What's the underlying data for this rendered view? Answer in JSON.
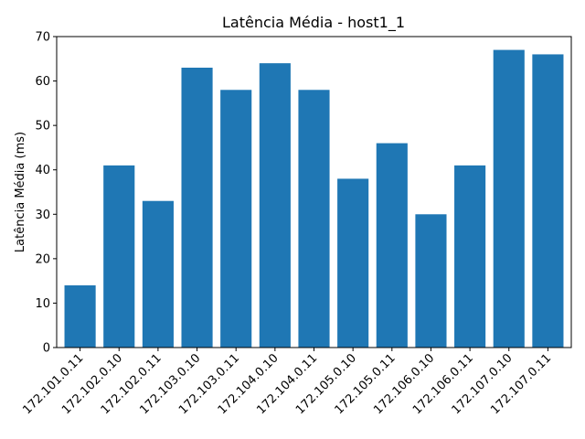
{
  "chart_data": {
    "type": "bar",
    "title": "Latência Média - host1_1",
    "xlabel": "",
    "ylabel": "Latência Média (ms)",
    "ylim": [
      0,
      70
    ],
    "yticks": [
      0,
      10,
      20,
      30,
      40,
      50,
      60,
      70
    ],
    "grid": false,
    "bar_color": "#1f77b4",
    "categories": [
      "172.101.0.11",
      "172.102.0.10",
      "172.102.0.11",
      "172.103.0.10",
      "172.103.0.11",
      "172.104.0.10",
      "172.104.0.11",
      "172.105.0.10",
      "172.105.0.11",
      "172.106.0.10",
      "172.106.0.11",
      "172.107.0.10",
      "172.107.0.11"
    ],
    "values": [
      14,
      41,
      33,
      63,
      58,
      64,
      58,
      38,
      46,
      30,
      41,
      67,
      66
    ]
  }
}
